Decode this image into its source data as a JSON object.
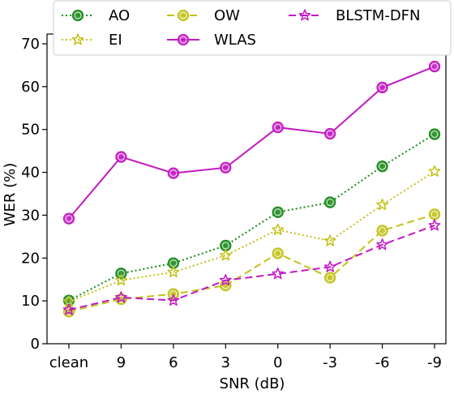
{
  "chart_data": {
    "type": "line",
    "xlabel": "SNR (dB)",
    "ylabel": "WER (%)",
    "categories": [
      "clean",
      "9",
      "6",
      "3",
      "0",
      "-3",
      "-6",
      "-9"
    ],
    "ylim": [
      0,
      70
    ],
    "yticks": [
      0,
      10,
      20,
      30,
      40,
      50,
      60,
      70
    ],
    "grid": false,
    "legend_position": "top",
    "series": [
      {
        "name": "AO",
        "values": [
          10.1,
          16.4,
          18.8,
          22.9,
          30.7,
          33.0,
          41.4,
          48.9
        ],
        "color": "#1a8a1a",
        "dash": "dotted",
        "marker": "circle"
      },
      {
        "name": "EI",
        "values": [
          9.8,
          14.8,
          16.7,
          20.6,
          26.6,
          24.0,
          32.4,
          40.2
        ],
        "color": "#c2c21a",
        "dash": "dotted",
        "marker": "star"
      },
      {
        "name": "OW",
        "values": [
          7.5,
          10.4,
          11.6,
          13.6,
          21.1,
          15.4,
          26.4,
          30.2
        ],
        "color": "#c2c21a",
        "dash": "dashed",
        "marker": "circle"
      },
      {
        "name": "WLAS",
        "values": [
          29.2,
          43.6,
          39.8,
          41.1,
          50.5,
          49.0,
          59.8,
          64.7
        ],
        "color": "#c21ac2",
        "dash": "solid",
        "marker": "circle"
      },
      {
        "name": "BLSTM-DFN",
        "values": [
          7.9,
          10.8,
          10.1,
          14.8,
          16.3,
          17.9,
          23.1,
          27.6
        ],
        "color": "#c21ac2",
        "dash": "dashed",
        "marker": "star"
      }
    ]
  }
}
